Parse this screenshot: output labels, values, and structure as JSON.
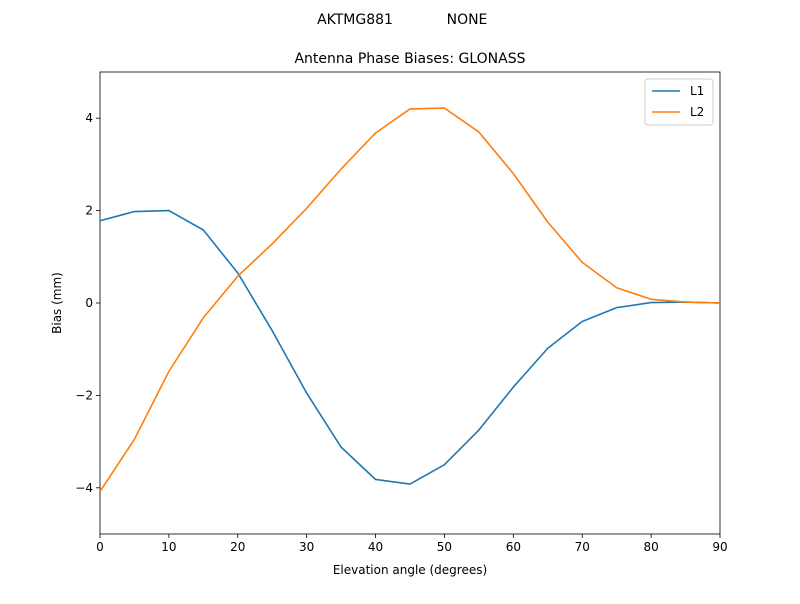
{
  "chart_data": {
    "type": "line",
    "suptitle_left": "AKTMG881",
    "suptitle_right": "NONE",
    "title": "Antenna Phase Biases: GLONASS",
    "xlabel": "Elevation angle (degrees)",
    "ylabel": "Bias (mm)",
    "xlim": [
      0,
      90
    ],
    "ylim": [
      -5,
      5
    ],
    "xticks": [
      0,
      10,
      20,
      30,
      40,
      50,
      60,
      70,
      80,
      90
    ],
    "yticks": [
      -4,
      -2,
      0,
      2,
      4
    ],
    "ytick_labels": [
      "−4",
      "−2",
      "0",
      "2",
      "4"
    ],
    "grid": false,
    "legend": "top-right",
    "x": [
      0,
      5,
      10,
      15,
      20,
      25,
      30,
      35,
      40,
      45,
      50,
      55,
      60,
      65,
      70,
      75,
      80,
      85,
      90
    ],
    "series": [
      {
        "name": "L1",
        "color": "#1f77b4",
        "values": [
          1.78,
          1.98,
          2.0,
          1.58,
          0.65,
          -0.6,
          -1.95,
          -3.12,
          -3.82,
          -3.92,
          -3.5,
          -2.75,
          -1.82,
          -0.98,
          -0.4,
          -0.1,
          0.01,
          0.02,
          0.0
        ]
      },
      {
        "name": "L2",
        "color": "#ff7f0e",
        "values": [
          -4.08,
          -2.95,
          -1.48,
          -0.32,
          0.58,
          1.28,
          2.05,
          2.9,
          3.68,
          4.2,
          4.22,
          3.7,
          2.8,
          1.75,
          0.88,
          0.33,
          0.08,
          0.02,
          0.0
        ]
      }
    ]
  }
}
